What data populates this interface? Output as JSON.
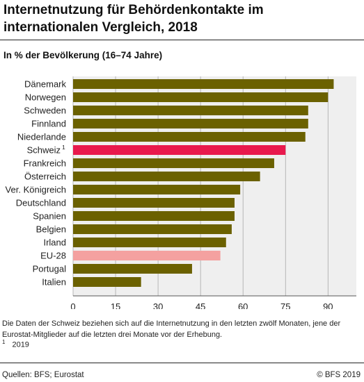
{
  "header": {
    "title": "Internetnutzung für Behördenkontakte im internationalen Vergleich, 2018",
    "subtitle": "In % der Bevölkerung (16–74 Jahre)"
  },
  "chart_data": {
    "type": "bar",
    "orientation": "horizontal",
    "categories": [
      "Dänemark",
      "Norwegen",
      "Schweden",
      "Finnland",
      "Niederlande",
      "Schweiz",
      "Frankreich",
      "Österreich",
      "Ver. Königreich",
      "Deutschland",
      "Spanien",
      "Belgien",
      "Irland",
      "EU-28",
      "Portugal",
      "Italien"
    ],
    "category_footnotes": [
      "",
      "",
      "",
      "",
      "",
      "1",
      "",
      "",
      "",
      "",
      "",
      "",
      "",
      "",
      "",
      ""
    ],
    "values": [
      92,
      90,
      83,
      83,
      82,
      75,
      71,
      66,
      59,
      57,
      57,
      56,
      54,
      52,
      42,
      24
    ],
    "highlight": {
      "Schweiz": "#e8194d",
      "EU-28": "#f4a1a0"
    },
    "default_color": "#6b6100",
    "xlim": [
      0,
      100
    ],
    "xticks": [
      0,
      15,
      30,
      45,
      60,
      75,
      90
    ],
    "xlabel": "",
    "ylabel": "",
    "grid": "vertical"
  },
  "footer": {
    "note": "Die Daten der Schweiz beziehen sich auf die Internetnutzung in den letzten zwölf Monaten, jene der Eurostat-Mitglieder auf die letzten drei Monate vor der Erhebung.",
    "footnote_marker": "1",
    "footnote_text": "2019",
    "source": "Quellen: BFS; Eurostat",
    "copyright": "© BFS 2019"
  }
}
